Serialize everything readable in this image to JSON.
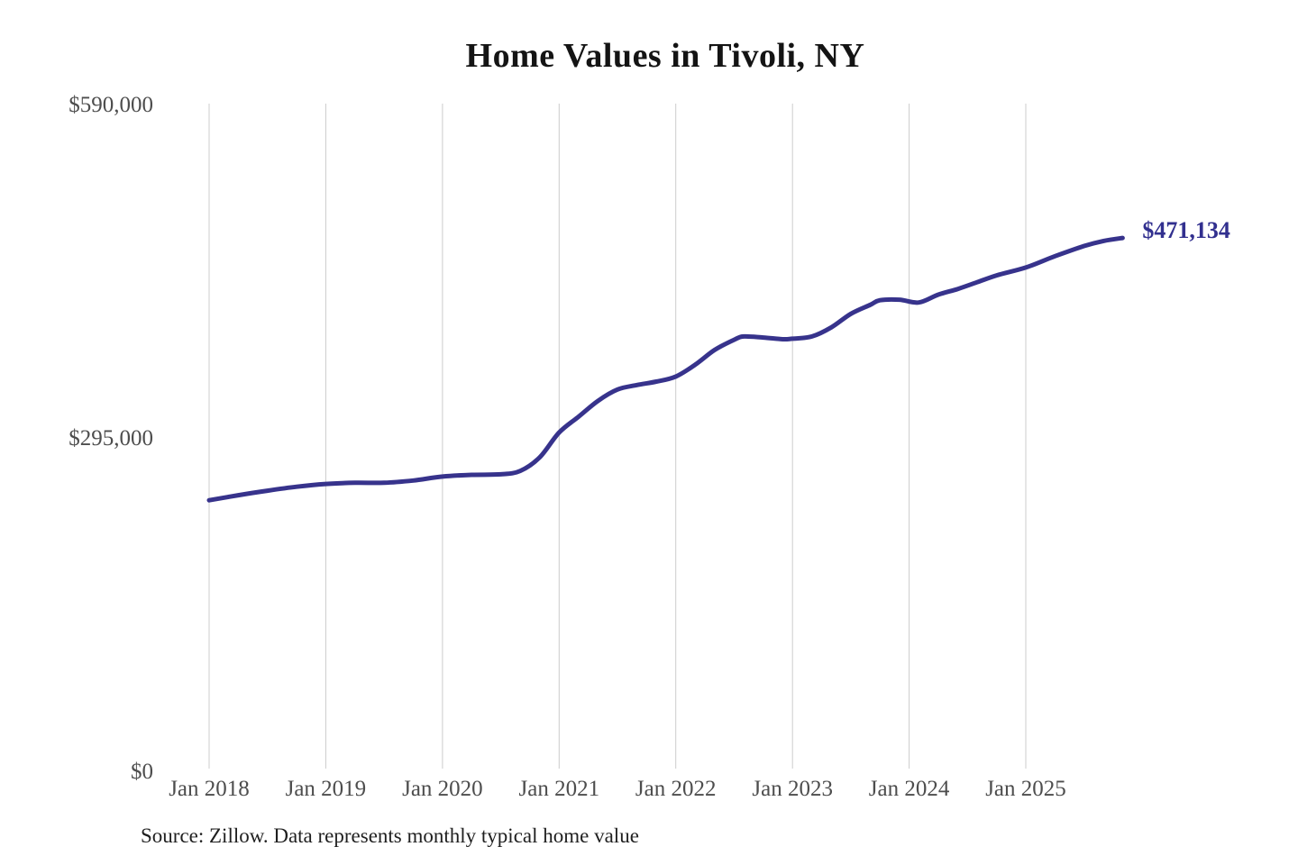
{
  "title": "Home Values in Tivoli, NY",
  "source_note": "Source: Zillow. Data represents monthly typical home value",
  "colors": {
    "background": "#ffffff",
    "line": "#37338c",
    "grid": "#cccccc",
    "title_text": "#141414",
    "axis_text": "#4d4d4d",
    "annotation_text": "#32308f",
    "source_text": "#1f1f1f"
  },
  "chart_data": {
    "type": "line",
    "title": "Home Values in Tivoli, NY",
    "legend": "none",
    "grid": "vertical-only",
    "x_axis": {
      "ticks": [
        "Jan 2018",
        "Jan 2019",
        "Jan 2020",
        "Jan 2021",
        "Jan 2022",
        "Jan 2023",
        "Jan 2024",
        "Jan 2025"
      ],
      "tick_years": [
        2018,
        2019,
        2020,
        2021,
        2022,
        2023,
        2024,
        2025
      ],
      "range_years": [
        2018.0,
        2025.83
      ]
    },
    "y_axis": {
      "ticks": [
        {
          "label": "$590,000",
          "value": 590000
        },
        {
          "label": "$295,000",
          "value": 295000
        },
        {
          "label": "$0",
          "value": 0
        }
      ],
      "range": [
        0,
        590000
      ]
    },
    "series": [
      {
        "name": "Monthly typical home value",
        "points": [
          [
            2018.0,
            239000
          ],
          [
            2018.25,
            243500
          ],
          [
            2018.5,
            247500
          ],
          [
            2018.75,
            251000
          ],
          [
            2019.0,
            253500
          ],
          [
            2019.25,
            254500
          ],
          [
            2019.5,
            254500
          ],
          [
            2019.75,
            256500
          ],
          [
            2020.0,
            260000
          ],
          [
            2020.25,
            261500
          ],
          [
            2020.5,
            262000
          ],
          [
            2020.667,
            265000
          ],
          [
            2020.833,
            277000
          ],
          [
            2021.0,
            299000
          ],
          [
            2021.167,
            313000
          ],
          [
            2021.333,
            327000
          ],
          [
            2021.5,
            337000
          ],
          [
            2021.667,
            341000
          ],
          [
            2021.833,
            344000
          ],
          [
            2022.0,
            348500
          ],
          [
            2022.167,
            359000
          ],
          [
            2022.333,
            372000
          ],
          [
            2022.5,
            381000
          ],
          [
            2022.583,
            384000
          ],
          [
            2022.75,
            383000
          ],
          [
            2022.917,
            381500
          ],
          [
            2023.0,
            382000
          ],
          [
            2023.167,
            384000
          ],
          [
            2023.333,
            392000
          ],
          [
            2023.5,
            404000
          ],
          [
            2023.667,
            412000
          ],
          [
            2023.75,
            416000
          ],
          [
            2023.917,
            416500
          ],
          [
            2024.083,
            414000
          ],
          [
            2024.25,
            421000
          ],
          [
            2024.417,
            426000
          ],
          [
            2024.583,
            432000
          ],
          [
            2024.75,
            438000
          ],
          [
            2025.0,
            445000
          ],
          [
            2025.25,
            455000
          ],
          [
            2025.5,
            464000
          ],
          [
            2025.667,
            468500
          ],
          [
            2025.83,
            471134
          ]
        ]
      }
    ],
    "annotation": {
      "text": "$471,134",
      "x": 2025.83,
      "value": 471134
    }
  }
}
